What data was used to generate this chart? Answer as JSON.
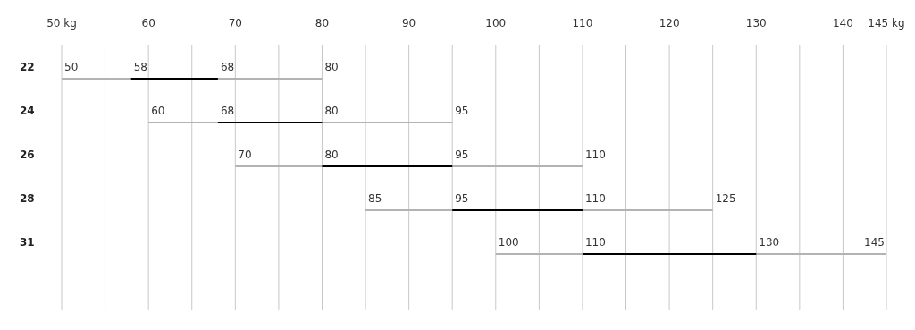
{
  "chart_data": {
    "type": "bar",
    "orientation": "horizontal",
    "categories": [
      "22",
      "24",
      "26",
      "28",
      "31"
    ],
    "series": [
      {
        "color": "#b3b3b3",
        "base": [
          50,
          60,
          70,
          85,
          100
        ],
        "values": [
          30,
          35,
          40,
          40,
          45
        ]
      },
      {
        "color": "#000000",
        "base": [
          58,
          68,
          80,
          95,
          110
        ],
        "values": [
          10,
          12,
          15,
          15,
          20
        ]
      }
    ],
    "xlim": [
      50,
      145
    ],
    "xticks": [
      {
        "value": 50,
        "label": "50 kg"
      },
      {
        "value": 55,
        "label": null
      },
      60,
      {
        "value": 65,
        "label": null
      },
      70,
      {
        "value": 75,
        "label": null
      },
      80,
      {
        "value": 85,
        "label": null
      },
      90,
      {
        "value": 95,
        "label": null
      },
      100,
      {
        "value": 105,
        "label": null
      },
      110,
      {
        "value": 115,
        "label": null
      },
      120,
      {
        "value": 125,
        "label": null
      },
      130,
      {
        "value": 135,
        "label": null
      },
      140,
      {
        "value": 145,
        "label": "145 kg"
      }
    ],
    "grid": "x",
    "annotations": [
      "50",
      "58",
      "68",
      "80",
      "60",
      "68",
      "80",
      "95",
      "70",
      "80",
      "95",
      "110",
      "85",
      "95",
      "110",
      "125",
      "100",
      "110",
      "130",
      "145"
    ]
  }
}
